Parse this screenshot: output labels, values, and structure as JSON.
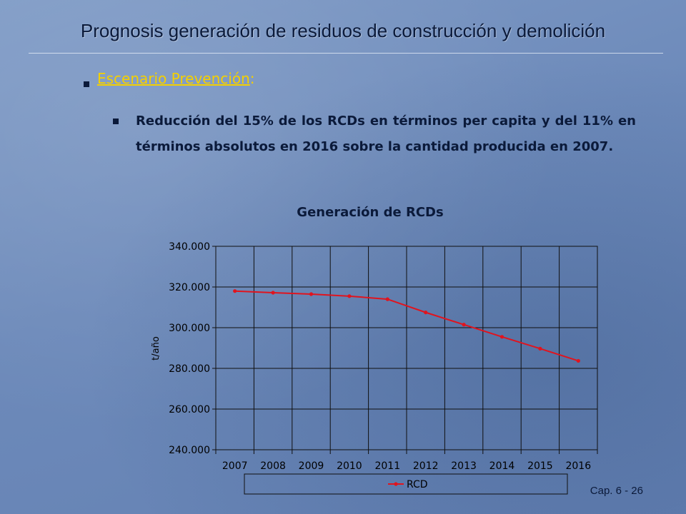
{
  "slide": {
    "title": "Prognosis generación de residuos de construcción y demolición",
    "scenario_label": "Escenario Prevención",
    "scenario_colon": ":",
    "bullet_text": "Reducción del 15% de los RCDs en términos per capita y del 11% en términos absolutos en 2016 sobre la cantidad producida en 2007.",
    "footer": "Cap. 6 - 26"
  },
  "colors": {
    "title": "#0b1a3a",
    "scenario": "#f4d000",
    "series_line": "#e0141e",
    "grid": "#101010"
  },
  "chart_data": {
    "type": "line",
    "title": "Generación de RCDs",
    "xlabel": "",
    "ylabel": "t/año",
    "categories": [
      "2007",
      "2008",
      "2009",
      "2010",
      "2011",
      "2012",
      "2013",
      "2014",
      "2015",
      "2016"
    ],
    "ylim": [
      240000,
      340000
    ],
    "yticks": [
      240000,
      260000,
      280000,
      300000,
      320000,
      340000
    ],
    "ytick_labels": [
      "240.000",
      "260.000",
      "280.000",
      "300.000",
      "320.000",
      "340.000"
    ],
    "grid": true,
    "legend_position": "bottom",
    "series": [
      {
        "name": "RCD",
        "values": [
          318000,
          317200,
          316500,
          315500,
          314000,
          307500,
          301500,
          295500,
          289700,
          283700
        ]
      }
    ]
  }
}
